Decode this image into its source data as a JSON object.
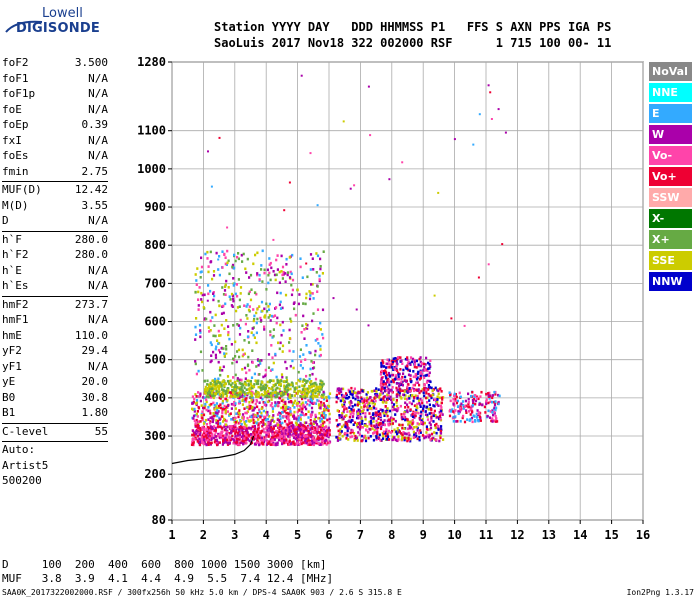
{
  "logo": {
    "line1": "Lowell",
    "line2": "DIGISONDE"
  },
  "header": {
    "line1": "Station YYYY DAY   DDD HHMMSS P1   FFS S AXN PPS IGA PS",
    "line2": "SaoLuis 2017 Nov18 322 002000 RSF      1 715 100 00- 11"
  },
  "params_a": [
    {
      "k": "foF2",
      "v": "3.500"
    },
    {
      "k": "foF1",
      "v": "N/A"
    },
    {
      "k": "foF1p",
      "v": "N/A"
    },
    {
      "k": "foE",
      "v": "N/A"
    },
    {
      "k": "foEp",
      "v": "0.39"
    },
    {
      "k": "fxI",
      "v": "N/A"
    },
    {
      "k": "foEs",
      "v": "N/A"
    },
    {
      "k": "fmin",
      "v": "2.75"
    }
  ],
  "params_b": [
    {
      "k": "MUF(D)",
      "v": "12.42"
    },
    {
      "k": "M(D)",
      "v": "3.55"
    },
    {
      "k": "D",
      "v": "N/A"
    }
  ],
  "params_c": [
    {
      "k": "h`F",
      "v": "280.0"
    },
    {
      "k": "h`F2",
      "v": "280.0"
    },
    {
      "k": "h`E",
      "v": "N/A"
    },
    {
      "k": "h`Es",
      "v": "N/A"
    }
  ],
  "params_d": [
    {
      "k": "hmF2",
      "v": "273.7"
    },
    {
      "k": "hmF1",
      "v": "N/A"
    },
    {
      "k": "hmE",
      "v": "110.0"
    },
    {
      "k": "yF2",
      "v": "29.4"
    },
    {
      "k": "yF1",
      "v": "N/A"
    },
    {
      "k": "yE",
      "v": "20.0"
    },
    {
      "k": "B0",
      "v": "30.8"
    },
    {
      "k": "B1",
      "v": "1.80"
    }
  ],
  "params_e": [
    {
      "k": "C-level",
      "v": "55"
    }
  ],
  "auto_lines": [
    "Auto:",
    "Artist5",
    "500200"
  ],
  "legend": [
    {
      "label": "NoVal",
      "color": "#888888"
    },
    {
      "label": "NNE",
      "color": "#00ffff"
    },
    {
      "label": "E",
      "color": "#33aaff"
    },
    {
      "label": "W",
      "color": "#aa00aa"
    },
    {
      "label": "Vo-",
      "color": "#ff44aa"
    },
    {
      "label": "Vo+",
      "color": "#ee0033"
    },
    {
      "label": "SSW",
      "color": "#ffaaaa"
    },
    {
      "label": "X-",
      "color": "#007700"
    },
    {
      "label": "X+",
      "color": "#66aa44"
    },
    {
      "label": "SSE",
      "color": "#cccc00"
    },
    {
      "label": "NNW",
      "color": "#0000cc"
    }
  ],
  "bottom_line1": "D     100  200  400  600  800 1000 1500 3000 [km]",
  "bottom_line2": "MUF   3.8  3.9  4.1  4.4  4.9  5.5  7.4 12.4 [MHz]",
  "footer": "SAA0K_2017322002000.RSF / 300fx256h 50 kHz 5.0 km / DPS-4 SAA0K 903 / 2.6 S 315.8 E",
  "footer_right": "Ion2Png 1.3.17",
  "chart_data": {
    "type": "scatter",
    "xlim": [
      1,
      16
    ],
    "ylim": [
      80,
      1280
    ],
    "xticks": [
      1,
      2,
      3,
      4,
      5,
      6,
      7,
      8,
      9,
      10,
      11,
      12,
      13,
      14,
      15,
      16
    ],
    "yticks": [
      80,
      200,
      300,
      400,
      500,
      600,
      700,
      800,
      900,
      1000,
      1100,
      1280
    ],
    "grid": true,
    "clusters": [
      {
        "name": "F-region low trace",
        "x": [
          1.6,
          6.0
        ],
        "y": [
          280,
          330
        ],
        "colors": [
          "#ee0033",
          "#ff44aa",
          "#aa00aa"
        ],
        "n": 900
      },
      {
        "name": "F-region mid",
        "x": [
          1.6,
          6.0
        ],
        "y": [
          330,
          420
        ],
        "colors": [
          "#ff44aa",
          "#aa00aa",
          "#ee0033",
          "#33aaff",
          "#cccc00"
        ],
        "n": 650
      },
      {
        "name": "yellow band",
        "x": [
          2.0,
          5.8
        ],
        "y": [
          405,
          450
        ],
        "colors": [
          "#cccc00",
          "#66aa44"
        ],
        "n": 450
      },
      {
        "name": "second layer",
        "x": [
          6.2,
          9.6
        ],
        "y": [
          290,
          430
        ],
        "colors": [
          "#ff44aa",
          "#aa00aa",
          "#ee0033",
          "#0000cc",
          "#cccc00"
        ],
        "n": 800
      },
      {
        "name": "second layer top",
        "x": [
          7.6,
          9.2
        ],
        "y": [
          420,
          510
        ],
        "colors": [
          "#ff44aa",
          "#aa00aa",
          "#ee0033",
          "#0000cc"
        ],
        "n": 250
      },
      {
        "name": "upper layer",
        "x": [
          9.8,
          11.4
        ],
        "y": [
          340,
          420
        ],
        "colors": [
          "#ff44aa",
          "#aa00aa",
          "#ee0033",
          "#33aaff"
        ],
        "n": 180
      },
      {
        "name": "spread columns",
        "x": [
          1.7,
          5.8
        ],
        "y": [
          450,
          790
        ],
        "colors": [
          "#cccc00",
          "#aa00aa",
          "#33aaff",
          "#ff44aa",
          "#66aa44"
        ],
        "n": 500
      }
    ],
    "trace": {
      "x": [
        1.0,
        1.5,
        2.0,
        2.5,
        3.0,
        3.3,
        3.5,
        3.6
      ],
      "y": [
        228,
        236,
        240,
        244,
        252,
        262,
        278,
        300
      ]
    }
  }
}
